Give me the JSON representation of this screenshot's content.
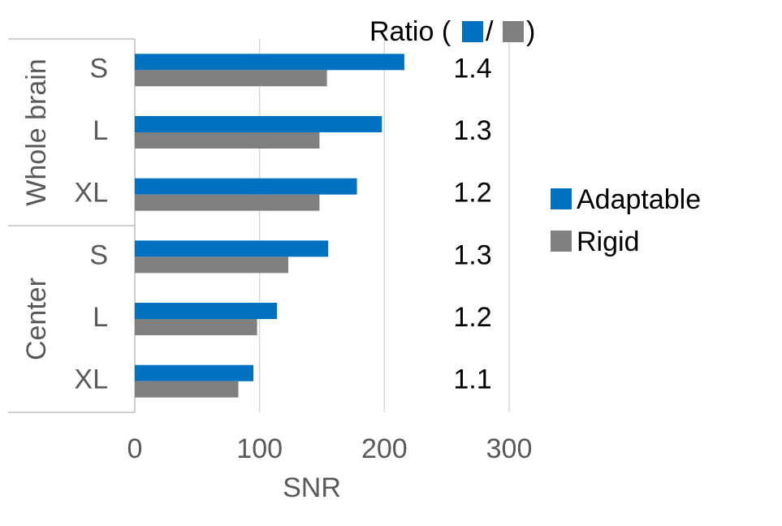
{
  "chart_data": {
    "type": "bar",
    "orientation": "horizontal",
    "groups": [
      {
        "name": "Whole brain",
        "categories": [
          "S",
          "L",
          "XL"
        ]
      },
      {
        "name": "Center",
        "categories": [
          "S",
          "L",
          "XL"
        ]
      }
    ],
    "series": [
      {
        "name": "Adaptable",
        "color": "#0070C0",
        "values": [
          216,
          198,
          178,
          155,
          114,
          95
        ]
      },
      {
        "name": "Rigid",
        "color": "#808080",
        "values": [
          154,
          148,
          148,
          123,
          98,
          83
        ]
      }
    ],
    "ratio": {
      "label_prefix": "Ratio (",
      "label_sep": "/",
      "label_suffix": ")",
      "values": [
        "1.4",
        "1.3",
        "1.2",
        "1.3",
        "1.2",
        "1.1"
      ]
    },
    "xlabel": "SNR",
    "xlim": [
      0,
      300
    ],
    "xticks": [
      "0",
      "100",
      "200",
      "300"
    ],
    "grid": true,
    "legend_position": "right"
  }
}
